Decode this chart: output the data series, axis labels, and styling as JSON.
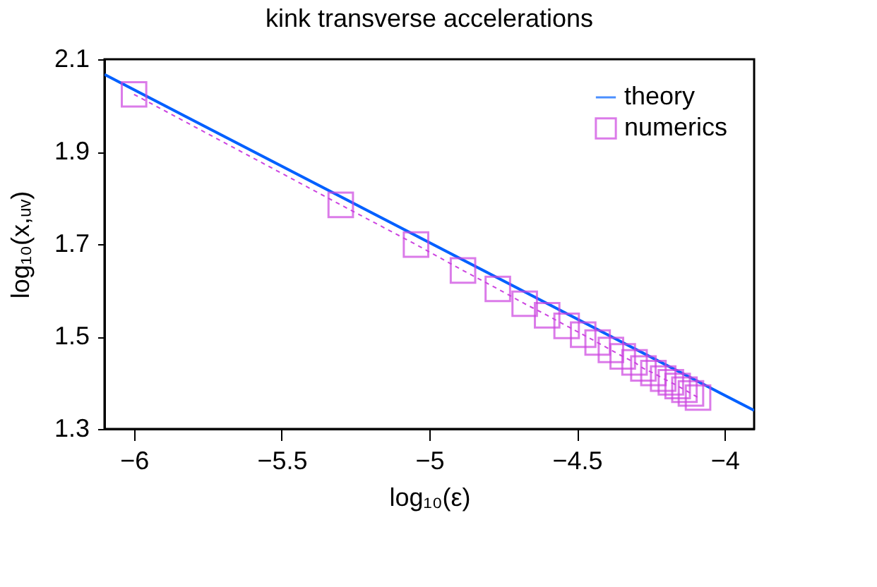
{
  "chart_data": {
    "type": "line",
    "title": "kink transverse accelerations",
    "xlabel": "log₁₀(ε)",
    "ylabel": "log₁₀(x,ᵤᵥ)",
    "xlim": [
      -6.1,
      -3.9
    ],
    "xticks": [
      -6,
      -5.5,
      -5,
      -4.5,
      -4
    ],
    "ylim": [
      1.3,
      2.1
    ],
    "yticks": [
      1.3,
      1.5,
      1.7,
      1.9,
      2.1
    ],
    "grid": false,
    "legend": "top right",
    "series": [
      {
        "name": "theory",
        "color": "#0060ff",
        "line_style": "solid",
        "marker": "none",
        "x": [
          -6.1,
          -3.9
        ],
        "values": [
          2.067,
          1.34
        ]
      },
      {
        "name": "numerics",
        "color": "#cc44e0",
        "line_style": "dashed",
        "marker": "square",
        "x": [
          -6,
          -5.3,
          -5.045,
          -4.886,
          -4.768,
          -4.677,
          -4.601,
          -4.535,
          -4.479,
          -4.43,
          -4.385,
          -4.345,
          -4.305,
          -4.275,
          -4.241,
          -4.208,
          -4.182,
          -4.159,
          -4.136,
          -4.114,
          -4.09
        ],
        "values": [
          2.024,
          1.785,
          1.699,
          1.643,
          1.603,
          1.571,
          1.546,
          1.523,
          1.504,
          1.487,
          1.471,
          1.457,
          1.444,
          1.431,
          1.421,
          1.409,
          1.401,
          1.393,
          1.385,
          1.377,
          1.368
        ]
      }
    ]
  }
}
